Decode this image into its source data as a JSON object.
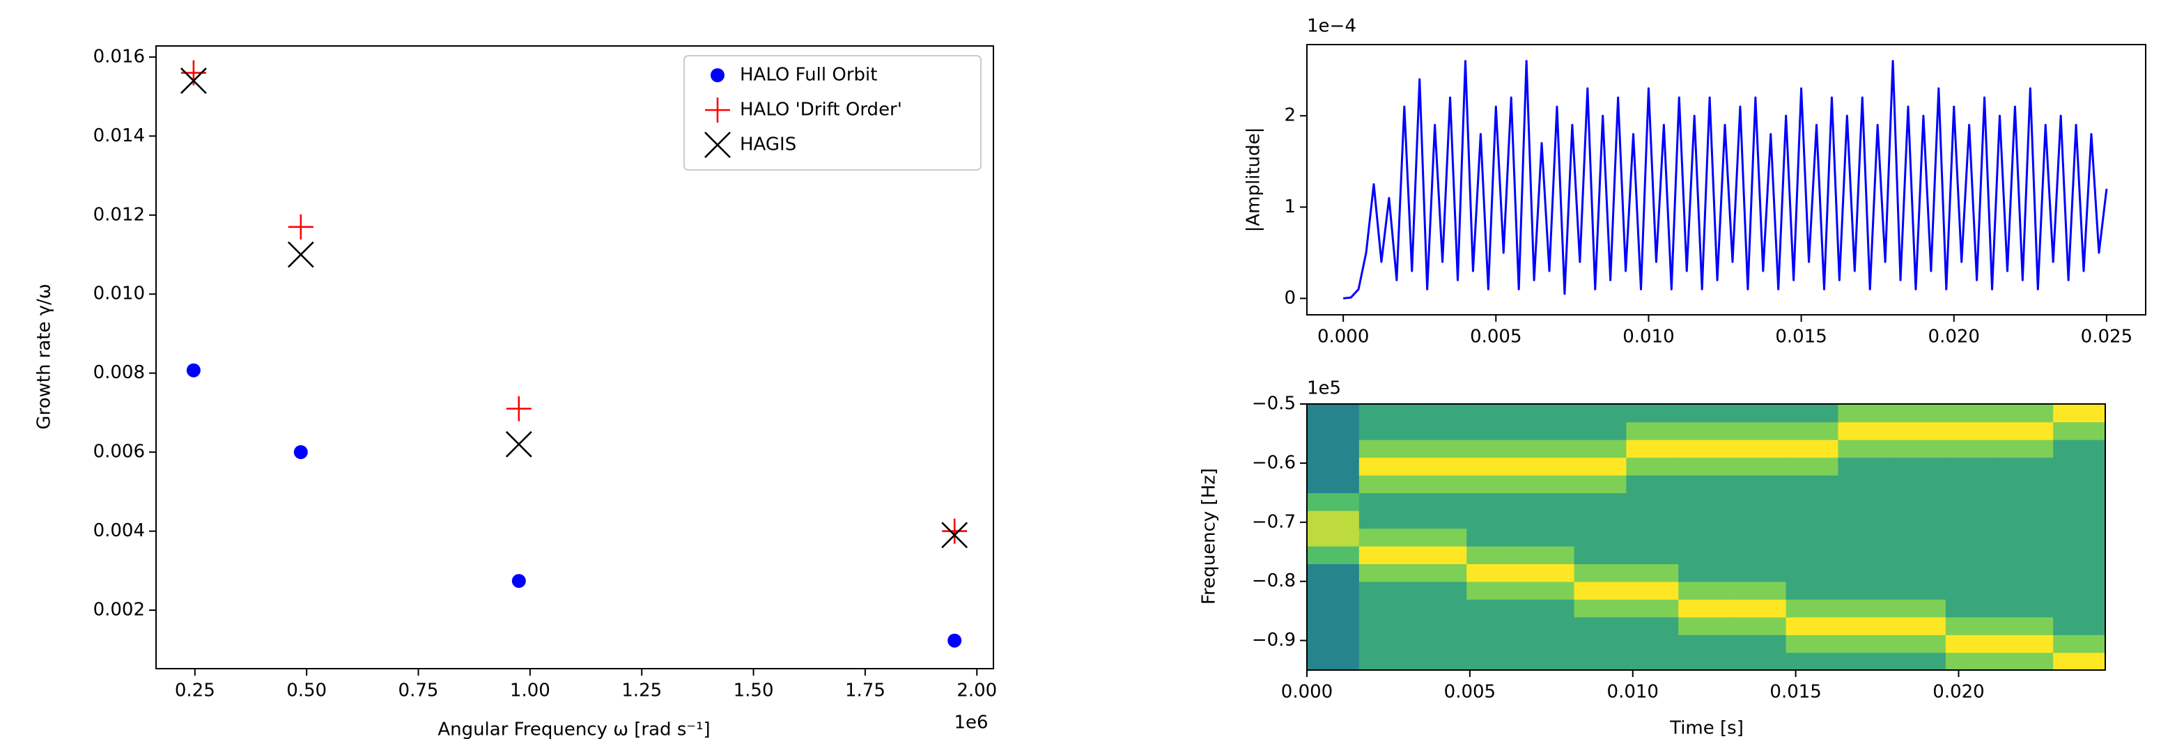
{
  "chart_data": [
    {
      "type": "scatter",
      "xlabel": "Angular Frequency ω [rad s⁻¹]",
      "ylabel": "Growth rate γ/ω",
      "x_offset": "1e6",
      "x": [
        247000,
        487000,
        975000,
        1950000
      ],
      "series": [
        {
          "name": "HALO Full Orbit",
          "color": "#0000ff",
          "marker": "o",
          "values": [
            0.00807,
            0.006,
            0.00274,
            0.00123
          ]
        },
        {
          "name": "HALO 'Drift Order'",
          "color": "#ff0000",
          "marker": "+",
          "values": [
            0.0156,
            0.0117,
            0.0071,
            0.004
          ]
        },
        {
          "name": "HAGIS",
          "color": "#000000",
          "marker": "x",
          "values": [
            0.0154,
            0.011,
            0.0062,
            0.0039
          ]
        }
      ],
      "xlim": [
        163000,
        2037000
      ],
      "ylim": [
        0.00052,
        0.01628
      ],
      "xticks": [
        {
          "value": 250000,
          "label": "0.25"
        },
        {
          "value": 500000,
          "label": "0.50"
        },
        {
          "value": 750000,
          "label": "0.75"
        },
        {
          "value": 1000000,
          "label": "1.00"
        },
        {
          "value": 1250000,
          "label": "1.25"
        },
        {
          "value": 1500000,
          "label": "1.50"
        },
        {
          "value": 1750000,
          "label": "1.75"
        },
        {
          "value": 2000000,
          "label": "2.00"
        }
      ],
      "yticks": [
        0.002,
        0.004,
        0.006,
        0.008,
        {
          "value": 0.01,
          "label": "0.010"
        },
        {
          "value": 0.012,
          "label": "0.012"
        },
        {
          "value": 0.014,
          "label": "0.014"
        },
        {
          "value": 0.016,
          "label": "0.016"
        }
      ],
      "legend": "upper right"
    },
    {
      "type": "line",
      "ylabel": "|Amplitude|",
      "y_offset": "1e−4",
      "color": "#0000ff",
      "x": [
        0,
        0.00025,
        0.0005,
        0.00075,
        0.001,
        0.00125,
        0.0015,
        0.00175,
        0.002,
        0.00225,
        0.0025,
        0.00275,
        0.003,
        0.00325,
        0.0035,
        0.00375,
        0.004,
        0.00425,
        0.0045,
        0.00475,
        0.005,
        0.00525,
        0.0055,
        0.00575,
        0.006,
        0.00625,
        0.0065,
        0.00675,
        0.007,
        0.00725,
        0.0075,
        0.00775,
        0.008,
        0.00825,
        0.0085,
        0.00875,
        0.009,
        0.00925,
        0.0095,
        0.00975,
        0.01,
        0.01025,
        0.0105,
        0.01075,
        0.011,
        0.01125,
        0.0115,
        0.01175,
        0.012,
        0.01225,
        0.0125,
        0.01275,
        0.013,
        0.01325,
        0.0135,
        0.01375,
        0.014,
        0.01425,
        0.0145,
        0.01475,
        0.015,
        0.01525,
        0.0155,
        0.01575,
        0.016,
        0.01625,
        0.0165,
        0.01675,
        0.017,
        0.01725,
        0.0175,
        0.01775,
        0.018,
        0.01825,
        0.0185,
        0.01875,
        0.019,
        0.01925,
        0.0195,
        0.01975,
        0.02,
        0.02025,
        0.0205,
        0.02075,
        0.021,
        0.02125,
        0.0215,
        0.02175,
        0.022,
        0.02225,
        0.0225,
        0.02275,
        0.023,
        0.02325,
        0.0235,
        0.02375,
        0.024,
        0.02425,
        0.0245,
        0.02475,
        0.025
      ],
      "values": [
        0,
        1e-06,
        1e-05,
        5e-05,
        0.000125,
        4e-05,
        0.00011,
        2e-05,
        0.00021,
        3e-05,
        0.00024,
        1e-05,
        0.00019,
        4e-05,
        0.00022,
        2e-05,
        0.00026,
        3e-05,
        0.00018,
        1e-05,
        0.00021,
        5e-05,
        0.00022,
        1e-05,
        0.00026,
        2e-05,
        0.00017,
        3e-05,
        0.00021,
        5e-06,
        0.00019,
        4e-05,
        0.00023,
        1e-05,
        0.0002,
        2e-05,
        0.00022,
        3e-05,
        0.00018,
        1e-05,
        0.00023,
        4e-05,
        0.00019,
        1e-05,
        0.00022,
        3e-05,
        0.0002,
        1e-05,
        0.00022,
        2e-05,
        0.00019,
        4e-05,
        0.00021,
        1e-05,
        0.00022,
        3e-05,
        0.00018,
        1e-05,
        0.0002,
        2e-05,
        0.00023,
        4e-05,
        0.00019,
        1e-05,
        0.00022,
        2e-05,
        0.0002,
        3e-05,
        0.00022,
        1e-05,
        0.00019,
        4e-05,
        0.00026,
        2e-05,
        0.00021,
        1e-05,
        0.0002,
        3e-05,
        0.00023,
        1e-05,
        0.00021,
        4e-05,
        0.00019,
        2e-05,
        0.00022,
        1e-05,
        0.0002,
        3e-05,
        0.00021,
        2e-05,
        0.00023,
        1e-05,
        0.00019,
        4e-05,
        0.0002,
        2e-05,
        0.00019,
        3e-05,
        0.00018,
        5e-05,
        0.00012
      ],
      "xlim": [
        -0.00119,
        0.02628
      ],
      "ylim": [
        -1.8e-05,
        0.000278
      ],
      "xticks": [
        {
          "value": 0,
          "label": "0.000"
        },
        0.005,
        {
          "value": 0.01,
          "label": "0.010"
        },
        0.015,
        {
          "value": 0.02,
          "label": "0.020"
        },
        0.025
      ],
      "yticks": [
        0,
        {
          "value": 0.0001,
          "label": "1"
        },
        {
          "value": 0.0002,
          "label": "2"
        }
      ]
    },
    {
      "type": "heatmap",
      "xlabel": "Time [s]",
      "ylabel": "Frequency [Hz]",
      "y_offset": "1e5",
      "colormap": "viridis",
      "x_bins": [
        0,
        0.0016,
        0.0033,
        0.0049,
        0.0065,
        0.0082,
        0.0098,
        0.0114,
        0.0131,
        0.0147,
        0.0163,
        0.018,
        0.0196,
        0.0212,
        0.0229,
        0.0245
      ],
      "y_bins": [
        -95000,
        -92000,
        -89000,
        -86000,
        -83000,
        -80000,
        -77000,
        -74000,
        -71000,
        -68000,
        -65000,
        -62000,
        -59000,
        -56000,
        -53000,
        -50000
      ],
      "z": [
        [
          0.45,
          0.45,
          0.45,
          0.45,
          0.45,
          0.45,
          0.7,
          0.9,
          0.9,
          0.7,
          0.45,
          0.45,
          0.45,
          0.45,
          0.45
        ],
        [
          0.6,
          0.6,
          0.6,
          0.6,
          0.6,
          0.8,
          1,
          0.8,
          0.6,
          0.6,
          0.8,
          1,
          0.8,
          0.6,
          0.6
        ],
        [
          0.6,
          0.6,
          0.6,
          0.6,
          0.6,
          0.8,
          1,
          0.8,
          0.6,
          0.6,
          0.8,
          1,
          0.8,
          0.6,
          0.6
        ],
        [
          0.6,
          0.6,
          0.6,
          0.6,
          0.8,
          1,
          0.8,
          0.6,
          0.6,
          0.6,
          0.8,
          1,
          0.8,
          0.6,
          0.6
        ],
        [
          0.6,
          0.6,
          0.6,
          0.6,
          0.8,
          1,
          0.8,
          0.6,
          0.6,
          0.6,
          0.8,
          1,
          0.8,
          0.6,
          0.6
        ],
        [
          0.6,
          0.6,
          0.6,
          0.8,
          1,
          0.8,
          0.6,
          0.6,
          0.6,
          0.6,
          0.8,
          1,
          0.8,
          0.6,
          0.6
        ],
        [
          0.6,
          0.6,
          0.6,
          0.8,
          1,
          0.8,
          0.6,
          0.6,
          0.6,
          0.6,
          0.6,
          0.8,
          1,
          0.8,
          0.6
        ],
        [
          0.6,
          0.6,
          0.8,
          1,
          0.8,
          0.6,
          0.6,
          0.6,
          0.6,
          0.6,
          0.6,
          0.8,
          1,
          0.8,
          0.6
        ],
        [
          0.6,
          0.6,
          0.8,
          1,
          0.8,
          0.6,
          0.6,
          0.6,
          0.6,
          0.6,
          0.6,
          0.8,
          1,
          0.8,
          0.6
        ],
        [
          0.6,
          0.8,
          1,
          0.8,
          0.6,
          0.6,
          0.6,
          0.6,
          0.6,
          0.6,
          0.6,
          0.8,
          1,
          0.8,
          0.6
        ],
        [
          0.6,
          0.8,
          1,
          0.8,
          0.6,
          0.6,
          0.6,
          0.6,
          0.6,
          0.6,
          0.6,
          0.6,
          0.8,
          1,
          0.8
        ],
        [
          0.6,
          0.8,
          1,
          0.8,
          0.6,
          0.6,
          0.6,
          0.6,
          0.6,
          0.6,
          0.6,
          0.6,
          0.8,
          1,
          0.8
        ],
        [
          0.8,
          1,
          0.8,
          0.6,
          0.6,
          0.6,
          0.6,
          0.6,
          0.6,
          0.6,
          0.6,
          0.6,
          0.8,
          1,
          0.8
        ],
        [
          0.8,
          1,
          0.8,
          0.6,
          0.6,
          0.6,
          0.6,
          0.6,
          0.6,
          0.6,
          0.6,
          0.6,
          0.8,
          1,
          0.8
        ],
        [
          1,
          0.8,
          0.6,
          0.6,
          0.6,
          0.6,
          0.6,
          0.6,
          0.6,
          0.6,
          0.6,
          0.6,
          0.6,
          0.8,
          1
        ]
      ],
      "xlim": [
        0,
        0.0245
      ],
      "ylim": [
        -95000,
        -50000
      ],
      "xticks": [
        {
          "value": 0,
          "label": "0.000"
        },
        0.005,
        {
          "value": 0.01,
          "label": "0.010"
        },
        0.015,
        {
          "value": 0.02,
          "label": "0.020"
        }
      ],
      "yticks": [
        {
          "value": -90000,
          "label": "−0.9"
        },
        {
          "value": -80000,
          "label": "−0.8"
        },
        {
          "value": -70000,
          "label": "−0.7"
        },
        {
          "value": -60000,
          "label": "−0.6"
        },
        {
          "value": -50000,
          "label": "−0.5"
        }
      ]
    }
  ]
}
